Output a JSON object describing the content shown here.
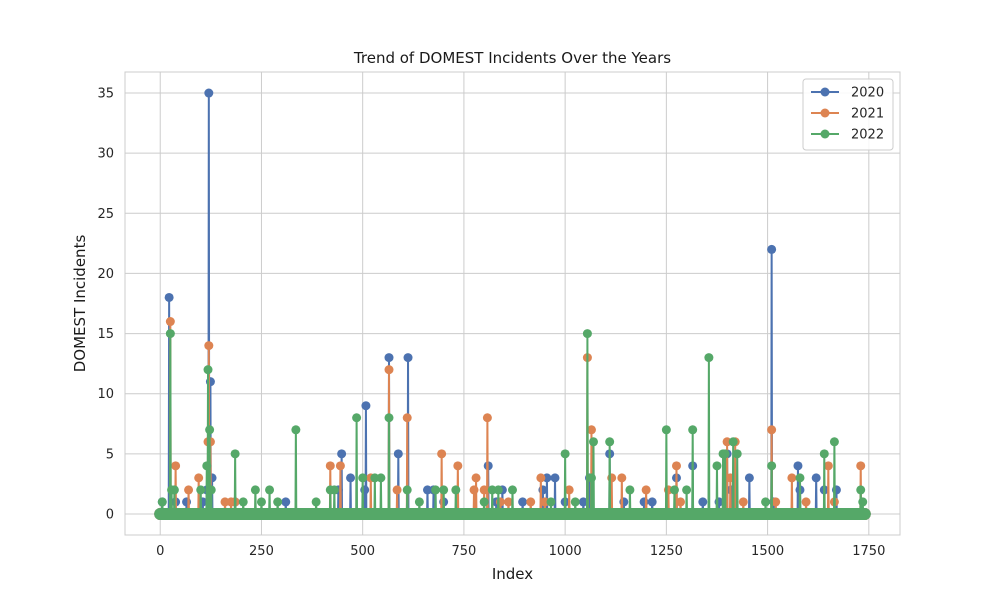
{
  "chart_data": {
    "type": "line",
    "title": "Trend of DOMEST Incidents Over the Years",
    "xlabel": "Index",
    "ylabel": "DOMEST Incidents",
    "xlim": [
      -87,
      1827
    ],
    "ylim": [
      -1.75,
      36.75
    ],
    "xticks": [
      0,
      250,
      500,
      750,
      1000,
      1250,
      1500,
      1750
    ],
    "yticks": [
      0,
      5,
      10,
      15,
      20,
      25,
      30,
      35
    ],
    "x_range": [
      0,
      1740
    ],
    "baseline": 0,
    "grid": true,
    "legend_position": "top-right",
    "series": [
      {
        "name": "2020",
        "color": "#4c72b0",
        "spikes": [
          [
            5,
            1
          ],
          [
            22,
            18
          ],
          [
            38,
            1
          ],
          [
            65,
            1
          ],
          [
            105,
            1
          ],
          [
            115,
            2
          ],
          [
            120,
            35
          ],
          [
            124,
            11
          ],
          [
            128,
            3
          ],
          [
            185,
            1
          ],
          [
            310,
            1
          ],
          [
            440,
            2
          ],
          [
            448,
            5
          ],
          [
            470,
            3
          ],
          [
            505,
            2
          ],
          [
            508,
            9
          ],
          [
            565,
            13
          ],
          [
            588,
            5
          ],
          [
            612,
            13
          ],
          [
            660,
            2
          ],
          [
            675,
            2
          ],
          [
            700,
            1
          ],
          [
            810,
            4
          ],
          [
            830,
            1
          ],
          [
            845,
            2
          ],
          [
            895,
            1
          ],
          [
            945,
            2
          ],
          [
            955,
            3
          ],
          [
            975,
            3
          ],
          [
            1000,
            1
          ],
          [
            1045,
            1
          ],
          [
            1060,
            3
          ],
          [
            1110,
            5
          ],
          [
            1145,
            1
          ],
          [
            1195,
            1
          ],
          [
            1215,
            1
          ],
          [
            1275,
            3
          ],
          [
            1315,
            4
          ],
          [
            1340,
            1
          ],
          [
            1380,
            1
          ],
          [
            1400,
            5
          ],
          [
            1410,
            2
          ],
          [
            1455,
            3
          ],
          [
            1510,
            22
          ],
          [
            1515,
            1
          ],
          [
            1575,
            4
          ],
          [
            1580,
            2
          ],
          [
            1620,
            3
          ],
          [
            1640,
            2
          ],
          [
            1670,
            2
          ]
        ]
      },
      {
        "name": "2021",
        "color": "#dd8452",
        "spikes": [
          [
            25,
            16
          ],
          [
            38,
            4
          ],
          [
            70,
            2
          ],
          [
            95,
            3
          ],
          [
            118,
            6
          ],
          [
            120,
            14
          ],
          [
            124,
            6
          ],
          [
            160,
            1
          ],
          [
            175,
            1
          ],
          [
            185,
            1
          ],
          [
            420,
            4
          ],
          [
            445,
            4
          ],
          [
            520,
            3
          ],
          [
            565,
            12
          ],
          [
            585,
            2
          ],
          [
            610,
            8
          ],
          [
            695,
            5
          ],
          [
            735,
            4
          ],
          [
            775,
            2
          ],
          [
            780,
            3
          ],
          [
            800,
            2
          ],
          [
            808,
            8
          ],
          [
            840,
            1
          ],
          [
            860,
            1
          ],
          [
            915,
            1
          ],
          [
            940,
            3
          ],
          [
            950,
            1
          ],
          [
            1010,
            2
          ],
          [
            1055,
            13
          ],
          [
            1065,
            7
          ],
          [
            1115,
            3
          ],
          [
            1140,
            3
          ],
          [
            1200,
            2
          ],
          [
            1255,
            2
          ],
          [
            1275,
            4
          ],
          [
            1285,
            1
          ],
          [
            1400,
            6
          ],
          [
            1408,
            3
          ],
          [
            1420,
            6
          ],
          [
            1440,
            1
          ],
          [
            1510,
            7
          ],
          [
            1520,
            1
          ],
          [
            1560,
            3
          ],
          [
            1595,
            1
          ],
          [
            1650,
            4
          ],
          [
            1665,
            1
          ],
          [
            1730,
            4
          ]
        ]
      },
      {
        "name": "2022",
        "color": "#55a868",
        "spikes": [
          [
            5,
            1
          ],
          [
            25,
            15
          ],
          [
            28,
            2
          ],
          [
            35,
            2
          ],
          [
            100,
            2
          ],
          [
            115,
            4
          ],
          [
            118,
            12
          ],
          [
            122,
            7
          ],
          [
            126,
            2
          ],
          [
            185,
            5
          ],
          [
            205,
            1
          ],
          [
            235,
            2
          ],
          [
            250,
            1
          ],
          [
            270,
            2
          ],
          [
            290,
            1
          ],
          [
            335,
            7
          ],
          [
            385,
            1
          ],
          [
            420,
            2
          ],
          [
            430,
            2
          ],
          [
            485,
            8
          ],
          [
            500,
            3
          ],
          [
            530,
            3
          ],
          [
            545,
            3
          ],
          [
            565,
            8
          ],
          [
            610,
            2
          ],
          [
            640,
            1
          ],
          [
            680,
            2
          ],
          [
            700,
            2
          ],
          [
            730,
            2
          ],
          [
            800,
            1
          ],
          [
            820,
            2
          ],
          [
            835,
            2
          ],
          [
            870,
            2
          ],
          [
            965,
            1
          ],
          [
            1000,
            5
          ],
          [
            1025,
            1
          ],
          [
            1055,
            15
          ],
          [
            1065,
            3
          ],
          [
            1070,
            6
          ],
          [
            1110,
            6
          ],
          [
            1160,
            2
          ],
          [
            1250,
            7
          ],
          [
            1270,
            2
          ],
          [
            1300,
            2
          ],
          [
            1315,
            7
          ],
          [
            1355,
            13
          ],
          [
            1375,
            4
          ],
          [
            1390,
            5
          ],
          [
            1395,
            5
          ],
          [
            1415,
            6
          ],
          [
            1425,
            5
          ],
          [
            1495,
            1
          ],
          [
            1510,
            4
          ],
          [
            1580,
            3
          ],
          [
            1640,
            5
          ],
          [
            1665,
            6
          ],
          [
            1730,
            2
          ],
          [
            1735,
            1
          ]
        ]
      }
    ]
  }
}
